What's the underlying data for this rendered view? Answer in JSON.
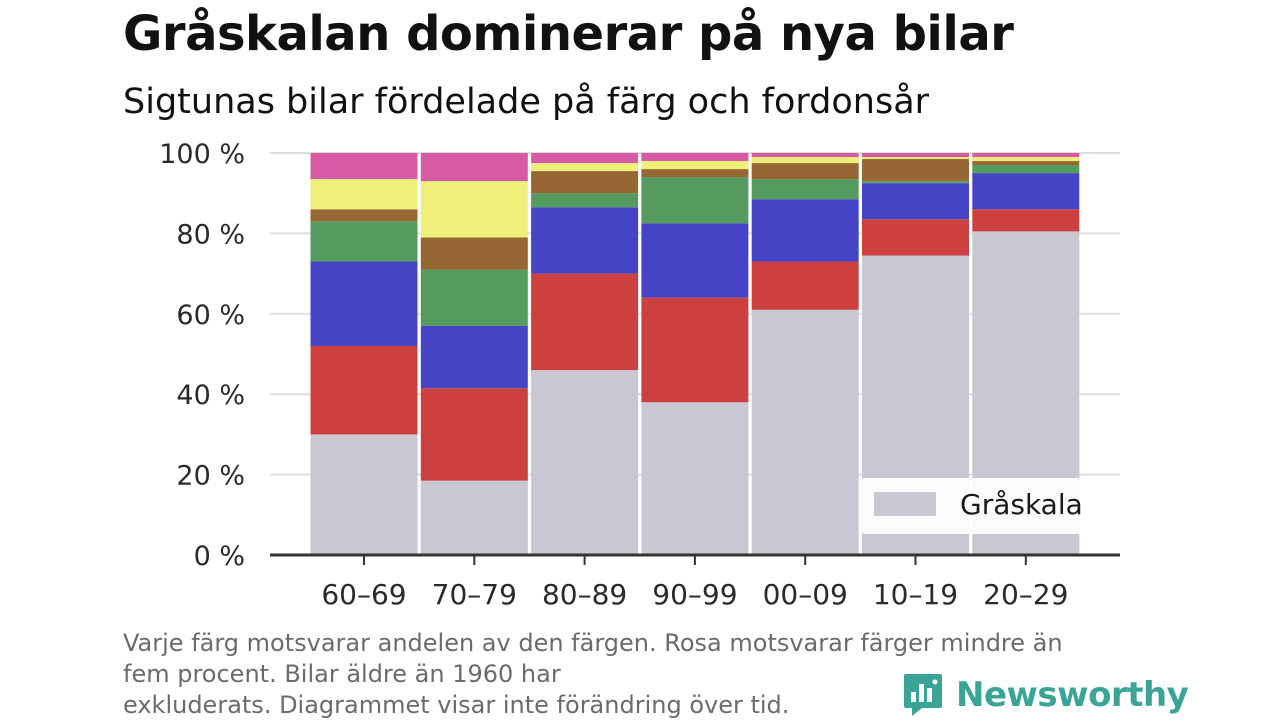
{
  "chart_data": {
    "type": "bar",
    "stacked": true,
    "normalized_percent": true,
    "title": "Gråskalan dominerar på nya bilar",
    "subtitle": "Sigtunas bilar fördelade på färg och fordonsår",
    "xlabel": "",
    "ylabel": "",
    "categories": [
      "60–69",
      "70–79",
      "80–89",
      "90–99",
      "00–09",
      "10–19",
      "20–29"
    ],
    "ylim": [
      0,
      100
    ],
    "yticks": [
      0,
      20,
      40,
      60,
      80,
      100
    ],
    "ytick_labels": [
      "0 %",
      "20 %",
      "40 %",
      "60 %",
      "80 %",
      "100 %"
    ],
    "grid": true,
    "legend": {
      "placement": "bottom-right",
      "visible_entries": [
        "Gråskala"
      ]
    },
    "series": [
      {
        "name": "Gråskala",
        "color": "#c8c7d2",
        "values": [
          30,
          18.5,
          46,
          38,
          61,
          74.5,
          80.5
        ]
      },
      {
        "color": "#cc4040",
        "values": [
          22,
          23,
          24,
          26,
          12,
          9,
          5.5
        ]
      },
      {
        "color": "#4444c4",
        "values": [
          21,
          15.5,
          16.5,
          18.5,
          15.5,
          9,
          9
        ]
      },
      {
        "color": "#559a5e",
        "values": [
          10,
          14,
          3.5,
          11.5,
          5,
          0.5,
          2
        ]
      },
      {
        "color": "#976733",
        "values": [
          3,
          8,
          5.5,
          2,
          4,
          5.5,
          1
        ]
      },
      {
        "color": "#eef07a",
        "values": [
          7.5,
          14,
          2,
          2,
          1.5,
          0.5,
          1
        ]
      },
      {
        "color": "#d75aa5",
        "values": [
          6.5,
          7,
          2.5,
          2,
          1,
          1,
          1
        ]
      }
    ]
  },
  "footnote": {
    "line1": "Varje färg motsvarar andelen av den färgen. Rosa motsvarar färger mindre än",
    "line2": "fem procent. Bilar äldre än 1960 har",
    "line3": "exkluderats. Diagrammet visar inte förändring över tid."
  },
  "brand": {
    "name": "Newsworthy",
    "color": "#3aa597",
    "icon": "newsworthy-bar-chart-icon"
  }
}
